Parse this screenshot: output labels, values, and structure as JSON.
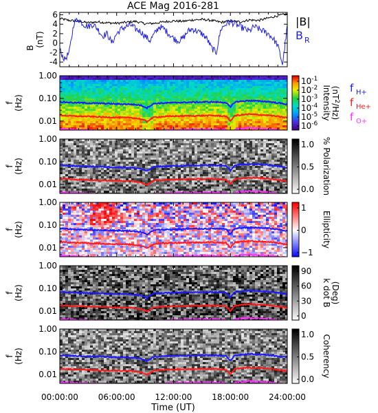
{
  "chart_data": {
    "title": "ACE Mag 2016-281",
    "xlabel": "Time (UT)",
    "x_ticks": [
      "00:00:00",
      "06:00:00",
      "12:00:00",
      "18:00:00",
      "24:00:00"
    ],
    "x_range_hours": [
      0,
      24
    ],
    "freq_ticks": [
      "1.00",
      "0.10",
      "0.01"
    ],
    "freq_range_hz": [
      0.004,
      1.0
    ],
    "freq_scale": "log",
    "lines": {
      "colors": {
        "fH": "#1a1aff",
        "fHe": "#ff1a1a",
        "fO": "#ff30ff"
      },
      "hours": [
        0,
        1.5,
        3,
        4.5,
        6,
        7.5,
        8.5,
        9.2,
        10,
        12,
        14,
        16,
        17.5,
        18,
        18.5,
        20,
        22,
        23,
        24
      ],
      "fH": [
        0.07,
        0.065,
        0.062,
        0.06,
        0.057,
        0.055,
        0.05,
        0.038,
        0.06,
        0.065,
        0.068,
        0.07,
        0.066,
        0.04,
        0.07,
        0.08,
        0.072,
        0.063,
        0.055
      ],
      "fHe": [
        0.018,
        0.0165,
        0.016,
        0.015,
        0.0145,
        0.014,
        0.0125,
        0.0095,
        0.015,
        0.0165,
        0.017,
        0.0175,
        0.0165,
        0.01,
        0.0175,
        0.02,
        0.018,
        0.016,
        0.014
      ],
      "fO": [
        0.0045,
        0.0042,
        0.004,
        0.0038,
        0.0037,
        0.0035,
        0.0032,
        0.0026,
        0.0038,
        0.0042,
        0.0043,
        0.0044,
        0.0042,
        0.0028,
        0.0044,
        0.005,
        0.0045,
        0.004,
        0.0036
      ]
    },
    "panels": [
      {
        "id": "B",
        "type": "line",
        "ylabel": "B",
        "yunit": "(nT)",
        "y_ticks": [
          "6",
          "4",
          "2",
          "0",
          "-2",
          "-4"
        ],
        "ylim": [
          -5,
          6.5
        ],
        "legend": [
          {
            "label": "|B|",
            "color": "#000000"
          },
          {
            "label": "B",
            "sub": "R",
            "color": "#2020e0"
          }
        ],
        "series": [
          {
            "name": "|B|",
            "color": "#000000",
            "hours": [
              0,
              1,
              2,
              3,
              4,
              5,
              6,
              7,
              8,
              9,
              10,
              11,
              12,
              13,
              14,
              15,
              16,
              17,
              18,
              19,
              20,
              21,
              22,
              23,
              24
            ],
            "values": [
              5.2,
              4.8,
              4.6,
              4.3,
              4.5,
              4.3,
              4.2,
              4.4,
              4.6,
              4.1,
              4.2,
              4.5,
              4.7,
              4.6,
              4.9,
              5.0,
              4.8,
              4.4,
              4.7,
              4.5,
              4.9,
              4.8,
              5.3,
              5.8,
              6.2
            ]
          },
          {
            "name": "B_R",
            "color": "#2020e0",
            "hours": [
              0,
              0.5,
              1,
              1.5,
              2,
              2.5,
              3,
              3.5,
              4,
              4.5,
              5,
              5.5,
              6,
              6.5,
              7,
              7.5,
              8,
              8.5,
              9,
              9.5,
              10,
              10.5,
              11,
              11.5,
              12,
              12.5,
              13,
              13.5,
              14,
              14.5,
              15,
              15.5,
              16,
              16.5,
              17,
              17.5,
              18,
              18.5,
              19,
              19.5,
              20,
              20.5,
              21,
              21.5,
              22,
              22.5,
              23,
              23.5,
              24
            ],
            "values": [
              -1.5,
              -3.5,
              -2.0,
              4.5,
              5.0,
              4.0,
              3.5,
              4.0,
              3.0,
              1.5,
              2.0,
              0.0,
              2.0,
              3.0,
              3.5,
              3.8,
              3.0,
              2.5,
              1.5,
              0.5,
              2.0,
              3.5,
              3.0,
              2.0,
              1.0,
              0.5,
              1.0,
              2.5,
              3.0,
              2.5,
              2.0,
              1.0,
              -1.0,
              -2.0,
              3.0,
              4.0,
              4.5,
              4.0,
              3.5,
              3.0,
              2.5,
              3.5,
              3.0,
              2.5,
              2.0,
              1.0,
              -0.5,
              -4.5,
              3.5
            ]
          }
        ]
      },
      {
        "id": "intensity",
        "type": "heatmap",
        "ylabel": "f",
        "yunit": "(Hz)",
        "colorbar": {
          "label": "Intensity",
          "unit": "(nT²/Hz)",
          "palette": "rainbow",
          "ticks": [
            {
              "base": "10",
              "exp": "-1"
            },
            {
              "base": "10",
              "exp": "-2"
            },
            {
              "base": "10",
              "exp": "-3"
            },
            {
              "base": "10",
              "exp": "-4"
            },
            {
              "base": "10",
              "exp": "-5"
            },
            {
              "base": "10",
              "exp": "-6"
            }
          ]
        },
        "line_legend": [
          {
            "label": "f",
            "sub": "H+",
            "color": "#1a1aff"
          },
          {
            "label": "f",
            "sub": "He+",
            "color": "#ff1a1a"
          },
          {
            "label": "f",
            "sub": "O+",
            "color": "#ff30ff"
          }
        ]
      },
      {
        "id": "polarization",
        "type": "heatmap",
        "ylabel": "f",
        "yunit": "(Hz)",
        "colorbar": {
          "label": "% Polarization",
          "unit": "",
          "palette": "gray",
          "ticks": [
            {
              "base": "1.0"
            },
            {
              "base": "0.5"
            },
            {
              "base": "0.0"
            }
          ]
        }
      },
      {
        "id": "ellipticity",
        "type": "heatmap",
        "ylabel": "f",
        "yunit": "(Hz)",
        "colorbar": {
          "label": "Ellipticity",
          "unit": "",
          "palette": "bwr",
          "ticks": [
            {
              "base": "1"
            },
            {
              "base": "0"
            },
            {
              "base": "−1"
            }
          ]
        }
      },
      {
        "id": "kdotb",
        "type": "heatmap",
        "ylabel": "f",
        "yunit": "(Hz)",
        "colorbar": {
          "label": "k dot B",
          "unit": "(Deg)",
          "palette": "gray",
          "ticks": [
            {
              "base": "90"
            },
            {
              "base": "60"
            },
            {
              "base": "30"
            },
            {
              "base": "0"
            }
          ]
        }
      },
      {
        "id": "coherency",
        "type": "heatmap",
        "ylabel": "f",
        "yunit": "(Hz)",
        "colorbar": {
          "label": "Coherency",
          "unit": "",
          "palette": "gray",
          "ticks": [
            {
              "base": "1.0"
            },
            {
              "base": "0.5"
            },
            {
              "base": "0.0"
            }
          ]
        }
      }
    ]
  }
}
